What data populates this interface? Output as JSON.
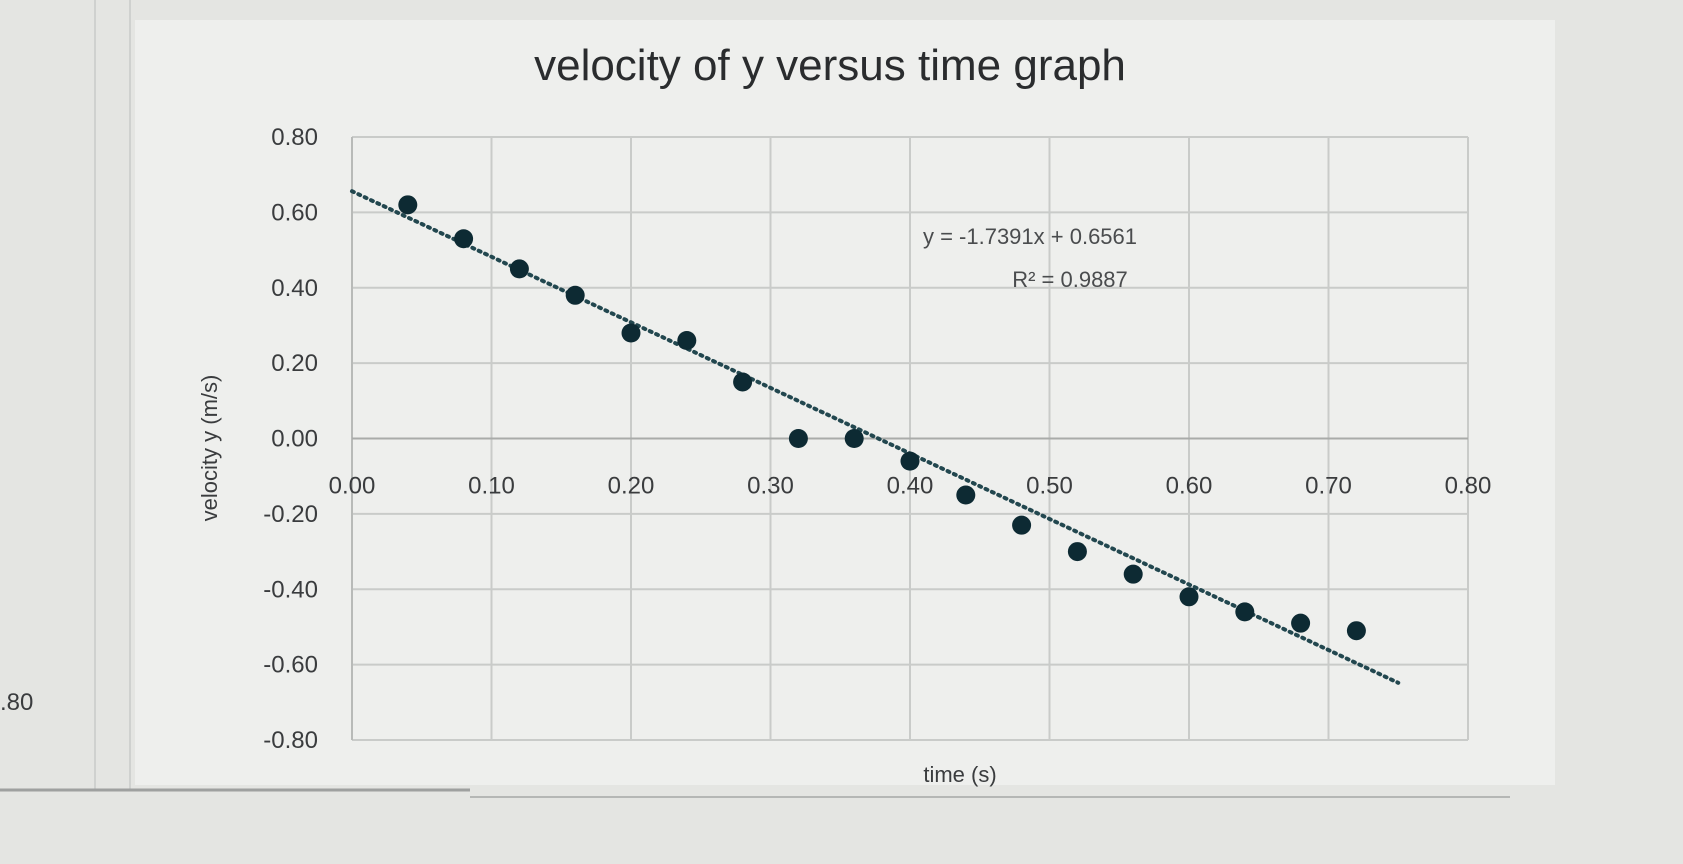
{
  "chart_data": {
    "type": "scatter",
    "title": "velocity of y versus time graph",
    "xlabel": "time (s)",
    "ylabel": "velocity y (m/s)",
    "xlim": [
      0,
      0.8
    ],
    "ylim": [
      -0.8,
      0.8
    ],
    "x_ticks": [
      "0.00",
      "0.10",
      "0.20",
      "0.30",
      "0.40",
      "0.50",
      "0.60",
      "0.70",
      "0.80"
    ],
    "y_ticks": [
      "0.80",
      "0.60",
      "0.40",
      "0.20",
      "0.00",
      "-0.20",
      "-0.40",
      "-0.60",
      "-0.80"
    ],
    "grid": true,
    "x": [
      0.04,
      0.08,
      0.12,
      0.16,
      0.2,
      0.24,
      0.28,
      0.32,
      0.36,
      0.4,
      0.44,
      0.48,
      0.52,
      0.56,
      0.6,
      0.64,
      0.68,
      0.72
    ],
    "y": [
      0.62,
      0.53,
      0.45,
      0.38,
      0.28,
      0.26,
      0.15,
      0.0,
      0.0,
      -0.06,
      -0.15,
      -0.23,
      -0.3,
      -0.36,
      -0.42,
      -0.46,
      -0.49,
      -0.51
    ],
    "marker_color": "#0d2a33",
    "trendline": {
      "type": "linear",
      "style": "dotted",
      "slope": -1.7391,
      "intercept": 0.6561,
      "x_range": [
        0.0,
        0.75
      ],
      "equation_label": "y = -1.7391x + 0.6561",
      "r2_label": "R² = 0.9887"
    }
  },
  "background_fragment": {
    "label": ".80"
  }
}
